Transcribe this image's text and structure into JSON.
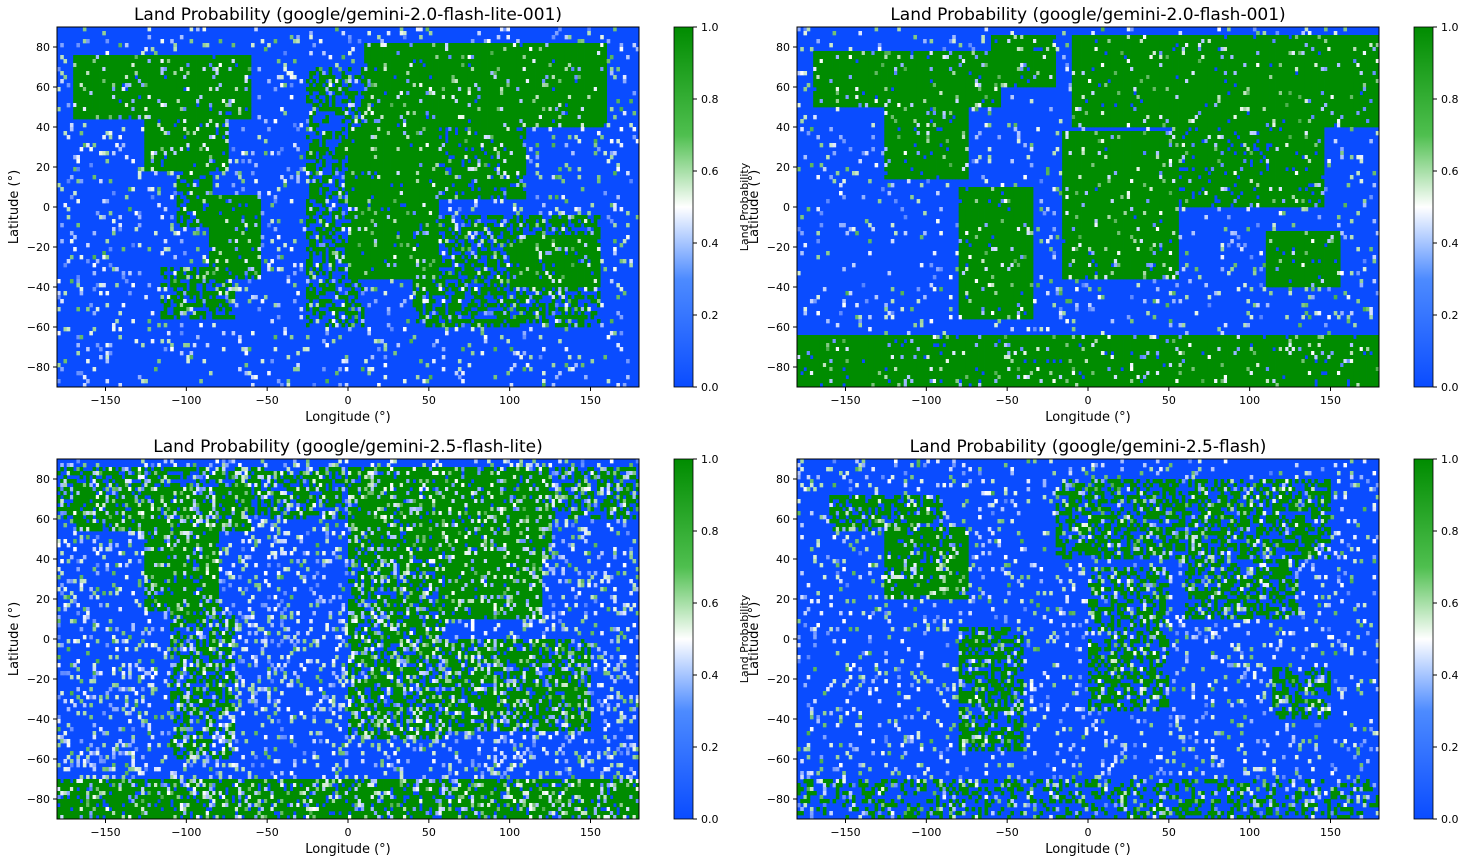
{
  "colors": {
    "ocean": "#0a4cff",
    "land": "#008c00",
    "mid": "#ffffff",
    "axis": "#000000"
  },
  "chart_data": [
    {
      "type": "heatmap",
      "title": "Land Probability (google/gemini-2.0-flash-lite-001)",
      "xlabel": "Longitude (°)",
      "ylabel": "Latitude (°)",
      "xlim": [
        -180,
        180
      ],
      "ylim": [
        -90,
        90
      ],
      "xticks": [
        "−150",
        "−100",
        "−50",
        "0",
        "50",
        "100",
        "150"
      ],
      "yticks": [
        "80",
        "60",
        "40",
        "20",
        "0",
        "−20",
        "−40",
        "−60",
        "−80"
      ],
      "colorbar": {
        "label": "Land Probability",
        "range": [
          0.0,
          1.0
        ],
        "ticks": [
          "0.0",
          "0.2",
          "0.4",
          "0.6",
          "0.8",
          "1.0"
        ]
      },
      "land_regions": [
        {
          "lon": [
            -170,
            -60
          ],
          "lat": [
            45,
            75
          ],
          "p": 0.97
        },
        {
          "lon": [
            -125,
            -75
          ],
          "lat": [
            18,
            50
          ],
          "p": 0.95
        },
        {
          "lon": [
            -105,
            -85
          ],
          "lat": [
            -10,
            20
          ],
          "p": 0.7
        },
        {
          "lon": [
            -85,
            -55
          ],
          "lat": [
            -35,
            5
          ],
          "p": 0.92
        },
        {
          "lon": [
            -115,
            -70
          ],
          "lat": [
            -55,
            -30
          ],
          "p": 0.6
        },
        {
          "lon": [
            10,
            160
          ],
          "lat": [
            40,
            82
          ],
          "p": 0.98
        },
        {
          "lon": [
            0,
            55
          ],
          "lat": [
            -35,
            40
          ],
          "p": 0.97
        },
        {
          "lon": [
            55,
            110
          ],
          "lat": [
            5,
            40
          ],
          "p": 0.85
        },
        {
          "lon": [
            100,
            155
          ],
          "lat": [
            -40,
            -15
          ],
          "p": 0.95
        },
        {
          "lon": [
            40,
            155
          ],
          "lat": [
            -60,
            -5
          ],
          "p": 0.55
        },
        {
          "lon": [
            -25,
            10
          ],
          "lat": [
            -60,
            70
          ],
          "p": 0.45
        }
      ],
      "noise": 0.09
    },
    {
      "type": "heatmap",
      "title": "Land Probability (google/gemini-2.0-flash-001)",
      "xlabel": "Longitude (°)",
      "ylabel": "Latitude (°)",
      "xlim": [
        -180,
        180
      ],
      "ylim": [
        -90,
        90
      ],
      "xticks": [
        "−150",
        "−100",
        "−50",
        "0",
        "50",
        "100",
        "150"
      ],
      "yticks": [
        "80",
        "60",
        "40",
        "20",
        "0",
        "−20",
        "−40",
        "−60",
        "−80"
      ],
      "colorbar": {
        "label": "Land Probability",
        "range": [
          0.0,
          1.0
        ],
        "ticks": [
          "0.0",
          "0.2",
          "0.4",
          "0.6",
          "0.8",
          "1.0"
        ]
      },
      "land_regions": [
        {
          "lon": [
            -170,
            -55
          ],
          "lat": [
            50,
            78
          ],
          "p": 0.97
        },
        {
          "lon": [
            -125,
            -75
          ],
          "lat": [
            15,
            55
          ],
          "p": 0.97
        },
        {
          "lon": [
            -80,
            -35
          ],
          "lat": [
            -55,
            10
          ],
          "p": 0.96
        },
        {
          "lon": [
            -60,
            -20
          ],
          "lat": [
            60,
            85
          ],
          "p": 0.95
        },
        {
          "lon": [
            -10,
            180
          ],
          "lat": [
            40,
            85
          ],
          "p": 0.98
        },
        {
          "lon": [
            -15,
            55
          ],
          "lat": [
            -35,
            38
          ],
          "p": 0.98
        },
        {
          "lon": [
            55,
            145
          ],
          "lat": [
            0,
            45
          ],
          "p": 0.9
        },
        {
          "lon": [
            110,
            155
          ],
          "lat": [
            -40,
            -12
          ],
          "p": 0.96
        },
        {
          "lon": [
            -180,
            180
          ],
          "lat": [
            -90,
            -65
          ],
          "p": 0.97
        }
      ],
      "noise": 0.07
    },
    {
      "type": "heatmap",
      "title": "Land Probability (google/gemini-2.5-flash-lite)",
      "xlabel": "Longitude (°)",
      "ylabel": "Latitude (°)",
      "xlim": [
        -180,
        180
      ],
      "ylim": [
        -90,
        90
      ],
      "xticks": [
        "−150",
        "−100",
        "−50",
        "0",
        "50",
        "100",
        "150"
      ],
      "yticks": [
        "80",
        "60",
        "40",
        "20",
        "0",
        "−20",
        "−40",
        "−60",
        "−80"
      ],
      "colorbar": {
        "label": "Land Probability",
        "range": [
          0.0,
          1.0
        ],
        "ticks": [
          "0.0",
          "0.2",
          "0.4",
          "0.6",
          "0.8",
          "1.0"
        ]
      },
      "land_regions": [
        {
          "lon": [
            -170,
            -60
          ],
          "lat": [
            55,
            75
          ],
          "p": 0.85
        },
        {
          "lon": [
            -125,
            -80
          ],
          "lat": [
            15,
            60
          ],
          "p": 0.9
        },
        {
          "lon": [
            -110,
            -70
          ],
          "lat": [
            -60,
            15
          ],
          "p": 0.5
        },
        {
          "lon": [
            0,
            125
          ],
          "lat": [
            40,
            85
          ],
          "p": 0.9
        },
        {
          "lon": [
            60,
            120
          ],
          "lat": [
            10,
            60
          ],
          "p": 0.95
        },
        {
          "lon": [
            0,
            60
          ],
          "lat": [
            -50,
            40
          ],
          "p": 0.65
        },
        {
          "lon": [
            60,
            150
          ],
          "lat": [
            -45,
            0
          ],
          "p": 0.7
        },
        {
          "lon": [
            -180,
            180
          ],
          "lat": [
            -90,
            -70
          ],
          "p": 0.85
        },
        {
          "lon": [
            -180,
            180
          ],
          "lat": [
            60,
            85
          ],
          "p": 0.55
        }
      ],
      "noise": 0.2
    },
    {
      "type": "heatmap",
      "title": "Land Probability (google/gemini-2.5-flash)",
      "xlabel": "Longitude (°)",
      "ylabel": "Latitude (°)",
      "xlim": [
        -180,
        180
      ],
      "ylim": [
        -90,
        90
      ],
      "xticks": [
        "−150",
        "−100",
        "−50",
        "0",
        "50",
        "100",
        "150"
      ],
      "yticks": [
        "80",
        "60",
        "40",
        "20",
        "0",
        "−20",
        "−40",
        "−60",
        "−80"
      ],
      "colorbar": {
        "label": "Land Probability",
        "range": [
          0.0,
          1.0
        ],
        "ticks": [
          "0.0",
          "0.2",
          "0.4",
          "0.6",
          "0.8",
          "1.0"
        ]
      },
      "land_regions": [
        {
          "lon": [
            -160,
            -90
          ],
          "lat": [
            55,
            72
          ],
          "p": 0.7
        },
        {
          "lon": [
            -125,
            -75
          ],
          "lat": [
            20,
            55
          ],
          "p": 0.85
        },
        {
          "lon": [
            -80,
            -40
          ],
          "lat": [
            -55,
            5
          ],
          "p": 0.6
        },
        {
          "lon": [
            -20,
            150
          ],
          "lat": [
            40,
            80
          ],
          "p": 0.55
        },
        {
          "lon": [
            0,
            50
          ],
          "lat": [
            -35,
            35
          ],
          "p": 0.5
        },
        {
          "lon": [
            60,
            130
          ],
          "lat": [
            10,
            45
          ],
          "p": 0.55
        },
        {
          "lon": [
            115,
            150
          ],
          "lat": [
            -40,
            -15
          ],
          "p": 0.55
        },
        {
          "lon": [
            -180,
            180
          ],
          "lat": [
            -90,
            -70
          ],
          "p": 0.3
        }
      ],
      "noise": 0.12
    }
  ]
}
